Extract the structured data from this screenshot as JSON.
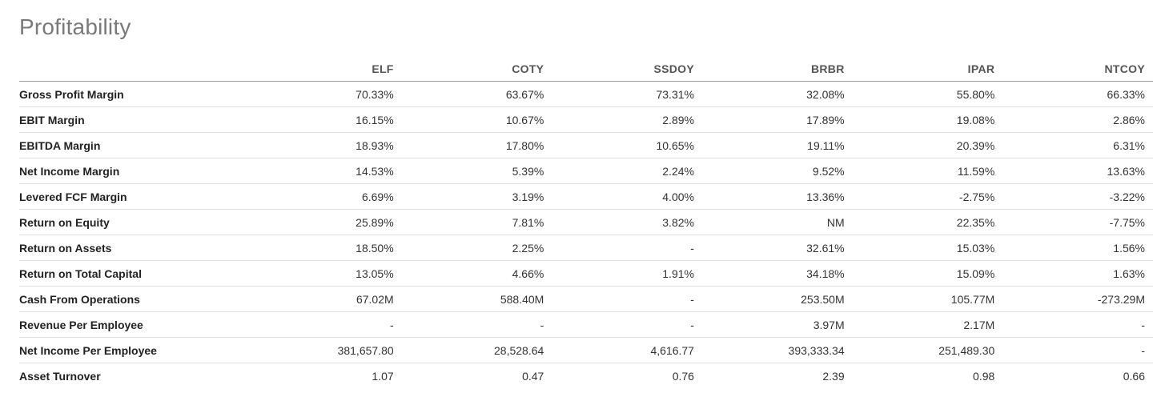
{
  "header": {
    "title": "Profitability"
  },
  "table": {
    "columns": [
      "ELF",
      "COTY",
      "SSDOY",
      "BRBR",
      "IPAR",
      "NTCOY"
    ],
    "rows": [
      {
        "label": "Gross Profit Margin",
        "values": [
          "70.33%",
          "63.67%",
          "73.31%",
          "32.08%",
          "55.80%",
          "66.33%"
        ]
      },
      {
        "label": "EBIT Margin",
        "values": [
          "16.15%",
          "10.67%",
          "2.89%",
          "17.89%",
          "19.08%",
          "2.86%"
        ]
      },
      {
        "label": "EBITDA Margin",
        "values": [
          "18.93%",
          "17.80%",
          "10.65%",
          "19.11%",
          "20.39%",
          "6.31%"
        ]
      },
      {
        "label": "Net Income Margin",
        "values": [
          "14.53%",
          "5.39%",
          "2.24%",
          "9.52%",
          "11.59%",
          "13.63%"
        ]
      },
      {
        "label": "Levered FCF Margin",
        "values": [
          "6.69%",
          "3.19%",
          "4.00%",
          "13.36%",
          "-2.75%",
          "-3.22%"
        ]
      },
      {
        "label": "Return on Equity",
        "values": [
          "25.89%",
          "7.81%",
          "3.82%",
          "NM",
          "22.35%",
          "-7.75%"
        ]
      },
      {
        "label": "Return on Assets",
        "values": [
          "18.50%",
          "2.25%",
          "-",
          "32.61%",
          "15.03%",
          "1.56%"
        ]
      },
      {
        "label": "Return on Total Capital",
        "values": [
          "13.05%",
          "4.66%",
          "1.91%",
          "34.18%",
          "15.09%",
          "1.63%"
        ]
      },
      {
        "label": "Cash From Operations",
        "values": [
          "67.02M",
          "588.40M",
          "-",
          "253.50M",
          "105.77M",
          "-273.29M"
        ]
      },
      {
        "label": "Revenue Per Employee",
        "values": [
          "-",
          "-",
          "-",
          "3.97M",
          "2.17M",
          "-"
        ]
      },
      {
        "label": "Net Income Per Employee",
        "values": [
          "381,657.80",
          "28,528.64",
          "4,616.77",
          "393,333.34",
          "251,489.30",
          "-"
        ]
      },
      {
        "label": "Asset Turnover",
        "values": [
          "1.07",
          "0.47",
          "0.76",
          "2.39",
          "0.98",
          "0.66"
        ]
      }
    ]
  }
}
